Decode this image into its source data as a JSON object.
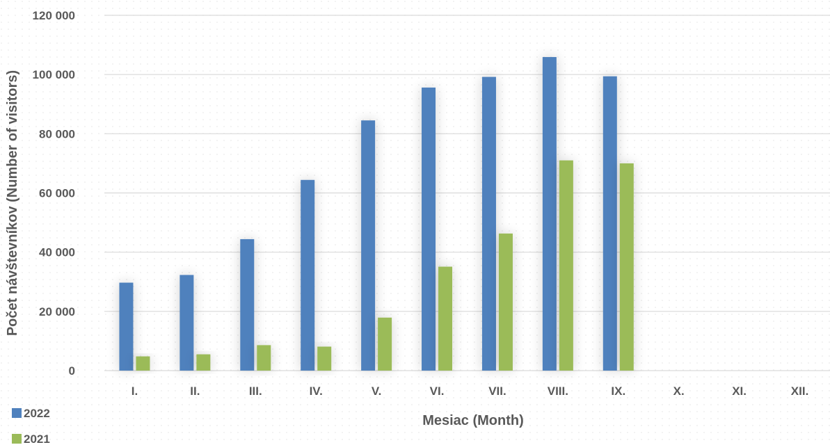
{
  "chart_data": {
    "type": "bar",
    "categories": [
      "I.",
      "II.",
      "III.",
      "IV.",
      "V.",
      "VI.",
      "VII.",
      "VIII.",
      "IX.",
      "X.",
      "XI.",
      "XII."
    ],
    "series": [
      {
        "name": "2022",
        "color": "#4f81bd",
        "values": [
          29700,
          32300,
          44400,
          64400,
          84500,
          95600,
          99200,
          105900,
          99400,
          null,
          null,
          null
        ]
      },
      {
        "name": "2021",
        "color": "#9bbb59",
        "values": [
          4800,
          5500,
          8600,
          8100,
          17900,
          35100,
          46300,
          71000,
          70000,
          null,
          null,
          null
        ]
      }
    ],
    "xlabel": "Mesiac (Month)",
    "ylabel": "Počet návštevníkov (Number of visitors)",
    "ylim": [
      0,
      120000
    ],
    "yticks": [
      0,
      20000,
      40000,
      60000,
      80000,
      100000,
      120000
    ],
    "ytick_labels": [
      "0",
      "20 000",
      "40 000",
      "60 000",
      "80 000",
      "100 000",
      "120 000"
    ],
    "grid": true,
    "legend_position": "bottom-left"
  }
}
